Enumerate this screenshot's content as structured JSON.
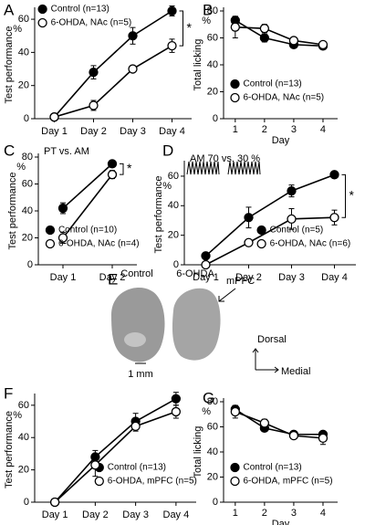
{
  "chart_data": [
    {
      "type": "line",
      "label": "A",
      "ylabel": "Test performance",
      "y_unit": "%",
      "categories": [
        "Day 1",
        "Day 2",
        "Day 3",
        "Day 4"
      ],
      "series": [
        {
          "name": "Control (n=13)",
          "color": "#000000",
          "values": [
            1,
            28,
            50,
            65
          ],
          "errors": [
            2,
            4,
            5,
            3
          ]
        },
        {
          "name": "6-OHDA, NAc (n=5)",
          "color": "#ffffff",
          "values": [
            1,
            8,
            30,
            44
          ],
          "errors": [
            1,
            3,
            2,
            4
          ]
        }
      ],
      "ylim": [
        0,
        65
      ],
      "yticks": [
        0,
        20,
        40,
        60
      ],
      "legend": "upper left",
      "annotation": "*"
    },
    {
      "type": "line",
      "label": "B",
      "ylabel": "Total licking",
      "y_unit": "%",
      "xlabel": "Day",
      "x": [
        1,
        2,
        3,
        4
      ],
      "xlim": [
        0.6,
        4.5
      ],
      "xticks": [
        1,
        2,
        3,
        4
      ],
      "series": [
        {
          "name": "Control (n=13)",
          "color": "#000000",
          "values": [
            73,
            60,
            55,
            54
          ],
          "errors": [
            3,
            3,
            2,
            2
          ]
        },
        {
          "name": "6-OHDA, NAc (n=5)",
          "color": "#ffffff",
          "values": [
            68,
            67,
            58,
            55
          ],
          "errors": [
            8,
            3,
            2,
            2
          ]
        }
      ],
      "ylim": [
        0,
        80
      ],
      "yticks": [
        0,
        20,
        40,
        60,
        80
      ],
      "legend": "lower right"
    },
    {
      "type": "line",
      "label": "C",
      "note": "PT vs. AM",
      "ylabel": "Test performance",
      "y_unit": "%",
      "categories": [
        "Day 1",
        "Day 2"
      ],
      "series": [
        {
          "name": "Control (n=10)",
          "color": "#000000",
          "values": [
            42,
            75
          ],
          "errors": [
            4,
            2
          ]
        },
        {
          "name": "6-OHDA, NAc (n=4)",
          "color": "#ffffff",
          "values": [
            20,
            67
          ],
          "errors": [
            4,
            3
          ]
        }
      ],
      "ylim": [
        0,
        80
      ],
      "yticks": [
        0,
        20,
        40,
        60,
        80
      ],
      "legend": "lower right",
      "annotation": "*"
    },
    {
      "type": "line",
      "label": "D",
      "note": "AM 70 vs. 30 %",
      "ylabel": "Test performance",
      "y_unit": "%",
      "categories": [
        "Day 1",
        "Day 2",
        "Day 3",
        "Day 4"
      ],
      "series": [
        {
          "name": "Control (n=5)",
          "color": "#000000",
          "values": [
            6,
            32,
            50,
            61
          ],
          "errors": [
            1,
            7,
            4,
            2
          ]
        },
        {
          "name": "6-OHDA, NAc (n=6)",
          "color": "#ffffff",
          "values": [
            0,
            15,
            31,
            32
          ],
          "errors": [
            0,
            2,
            7,
            5
          ]
        }
      ],
      "ylim": [
        0,
        68
      ],
      "yticks": [
        0,
        20,
        40,
        60
      ],
      "legend": "lower right",
      "annotation": "*"
    },
    {
      "type": "line",
      "label": "F",
      "ylabel": "Test performance",
      "y_unit": "%",
      "categories": [
        "Day 1",
        "Day 2",
        "Day 3",
        "Day 4"
      ],
      "series": [
        {
          "name": "Control (n=13)",
          "color": "#000000",
          "values": [
            0,
            28,
            50,
            64
          ],
          "errors": [
            1,
            4,
            5,
            4
          ]
        },
        {
          "name": "6-OHDA, mPFC (n=5)",
          "color": "#ffffff",
          "values": [
            0,
            23,
            47,
            56
          ],
          "errors": [
            1,
            7,
            3,
            4
          ]
        }
      ],
      "ylim": [
        0,
        65
      ],
      "yticks": [
        0,
        20,
        40,
        60
      ],
      "legend": "lower right"
    },
    {
      "type": "line",
      "label": "G",
      "ylabel": "Total licking",
      "y_unit": "%",
      "xlabel": "Day",
      "x": [
        1,
        2,
        3,
        4
      ],
      "xlim": [
        0.6,
        4.5
      ],
      "xticks": [
        1,
        2,
        3,
        4
      ],
      "series": [
        {
          "name": "Control (n=13)",
          "color": "#000000",
          "values": [
            74,
            59,
            54,
            54
          ],
          "errors": [
            3,
            2,
            2,
            2
          ]
        },
        {
          "name": "6-OHDA, mPFC (n=5)",
          "color": "#ffffff",
          "values": [
            72,
            63,
            53,
            51
          ],
          "errors": [
            5,
            3,
            2,
            5
          ]
        }
      ],
      "ylim": [
        0,
        80
      ],
      "yticks": [
        0,
        20,
        40,
        60,
        80
      ],
      "legend": "lower right"
    }
  ],
  "panel_e": {
    "label": "E",
    "left_title": "Control",
    "right_title": "6-OHDA",
    "region": "mPFC",
    "scale": "1 mm",
    "dorsal": "Dorsal",
    "medial": "Medial"
  }
}
